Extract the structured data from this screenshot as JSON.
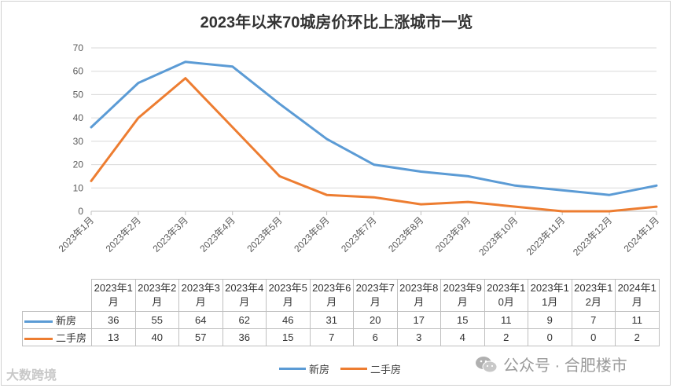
{
  "chart_data": {
    "type": "line",
    "title": "2023年以来70城房价环比上涨城市一览",
    "categories": [
      "2023年1月",
      "2023年2月",
      "2023年3月",
      "2023年4月",
      "2023年5月",
      "2023年6月",
      "2023年7月",
      "2023年8月",
      "2023年9月",
      "2023年10月",
      "2023年11月",
      "2023年12月",
      "2024年1月"
    ],
    "table_headers": [
      [
        "2023年1",
        "月"
      ],
      [
        "2023年2",
        "月"
      ],
      [
        "2023年3",
        "月"
      ],
      [
        "2023年4",
        "月"
      ],
      [
        "2023年5",
        "月"
      ],
      [
        "2023年6",
        "月"
      ],
      [
        "2023年7",
        "月"
      ],
      [
        "2023年8",
        "月"
      ],
      [
        "2023年9",
        "月"
      ],
      [
        "2023年1",
        "0月"
      ],
      [
        "2023年1",
        "1月"
      ],
      [
        "2023年1",
        "2月"
      ],
      [
        "2024年1",
        "月"
      ]
    ],
    "series": [
      {
        "name": "新房",
        "color": "#5b9bd5",
        "values": [
          36,
          55,
          64,
          62,
          46,
          31,
          20,
          17,
          15,
          11,
          9,
          7,
          11
        ]
      },
      {
        "name": "二手房",
        "color": "#ed7d31",
        "values": [
          13,
          40,
          57,
          36,
          15,
          7,
          6,
          3,
          4,
          2,
          0,
          0,
          2
        ]
      }
    ],
    "ylim": [
      0,
      70
    ],
    "yticks": [
      0,
      10,
      20,
      30,
      40,
      50,
      60,
      70
    ],
    "grid": true,
    "legend": "bottom"
  },
  "watermark_left": "大数跨境",
  "watermark_right": "公众号 · 合肥楼市",
  "wechat_icon": "wechat-icon"
}
